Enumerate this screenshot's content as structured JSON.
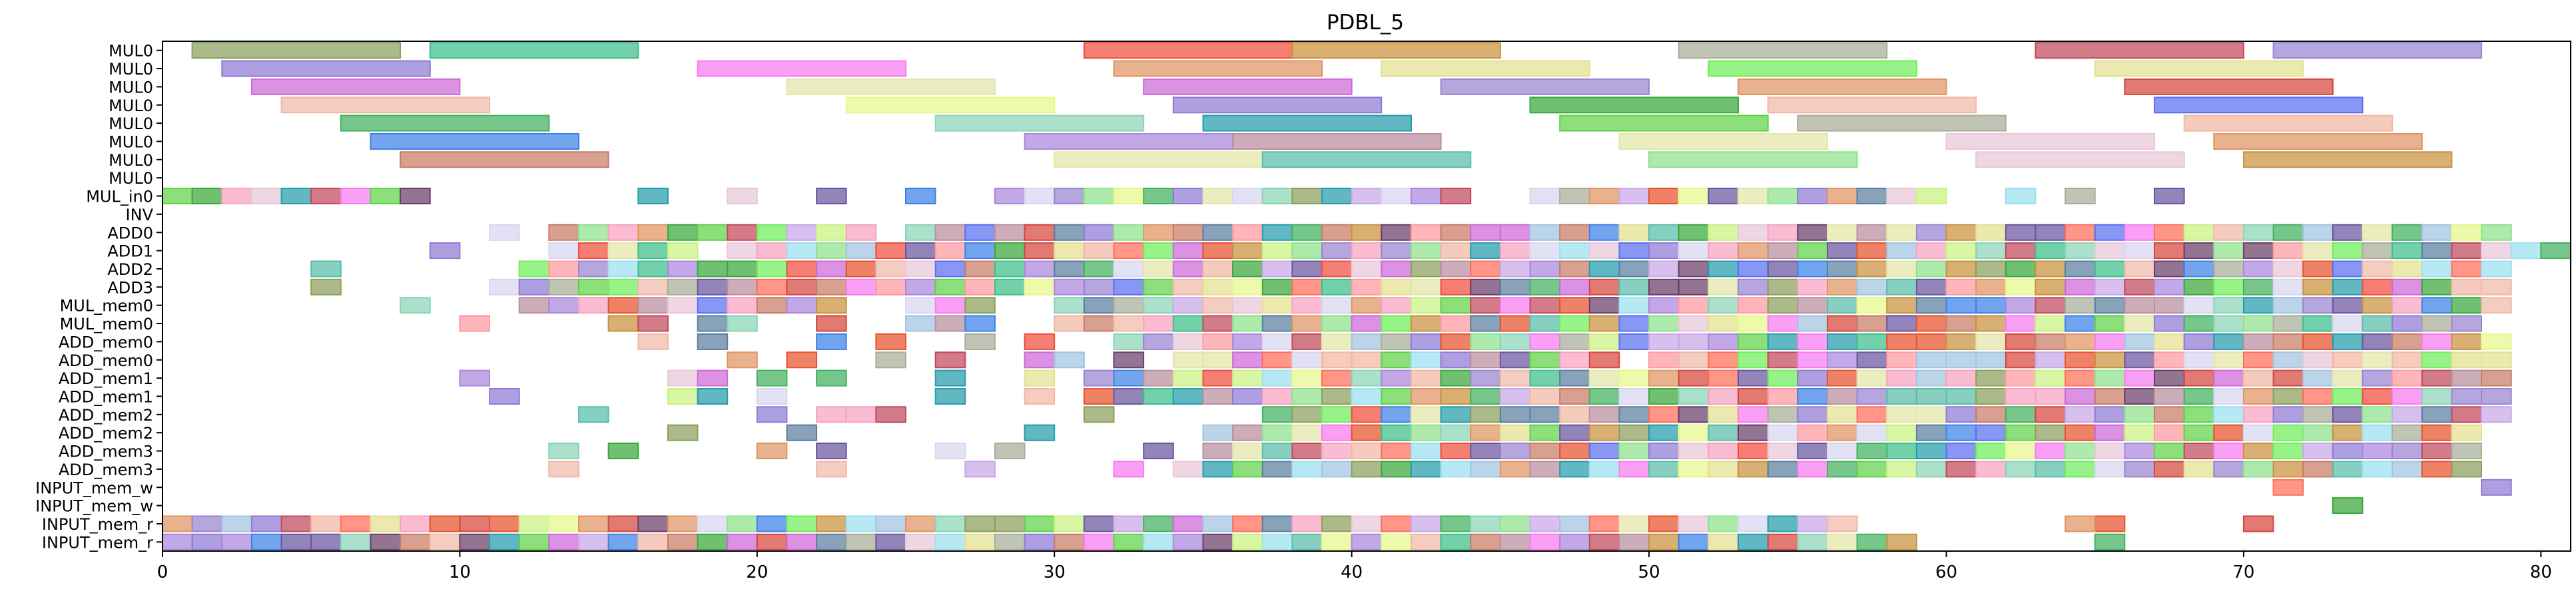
{
  "chart_data": {
    "type": "gantt",
    "title": "PDBL_5",
    "xlabel": "",
    "ylabel": "",
    "xlim": [
      0,
      81
    ],
    "x_ticks": [
      0,
      10,
      20,
      30,
      40,
      50,
      60,
      70,
      80
    ],
    "grid": false,
    "legend": "none",
    "rows": [
      "MUL0",
      "MUL0",
      "MUL0",
      "MUL0",
      "MUL0",
      "MUL0",
      "MUL0",
      "MUL0",
      "MUL_in0",
      "INV",
      "ADD0",
      "ADD1",
      "ADD2",
      "ADD3",
      "MUL_mem0",
      "MUL_mem0",
      "ADD_mem0",
      "ADD_mem0",
      "ADD_mem1",
      "ADD_mem1",
      "ADD_mem2",
      "ADD_mem2",
      "ADD_mem3",
      "ADD_mem3",
      "INPUT_mem_w",
      "INPUT_mem_w",
      "INPUT_mem_r",
      "INPUT_mem_r"
    ],
    "palette": [
      "#8aa05a",
      "#3cbf8a",
      "#f04e3c",
      "#c9913f",
      "#a8ad98",
      "#c04a5c",
      "#9a84d1",
      "#8f7ad6",
      "#f77cf0",
      "#c9f27f",
      "#e09462",
      "#e3e08f",
      "#e8f88a",
      "#6fee5a",
      "#e8522c",
      "#cd68d8",
      "#d4463c",
      "#f0b8a8",
      "#3aa83c",
      "#5a6ef0",
      "#43b15f",
      "#f0b7a2",
      "#aa86dc",
      "#e3e6a8",
      "#8ad4b5",
      "#249dab",
      "#5fd248",
      "#e8c7d8",
      "#bb8e9f",
      "#3b82e8",
      "#c77c66",
      "#59bda8",
      "#f7a2c0",
      "#6a55a0",
      "#8ee28a",
      "#6a3e6a",
      "#ff9aa0",
      "#5a7ea0",
      "#d8d6f0",
      "#a2c4e0",
      "#ff6e5a",
      "#9be0f0",
      "#c9a7e8"
    ],
    "tasks": [
      {
        "row": 0,
        "start": 1,
        "end": 8,
        "c": 0
      },
      {
        "row": 0,
        "start": 9,
        "end": 16,
        "c": 1
      },
      {
        "row": 0,
        "start": 31,
        "end": 38,
        "c": 2
      },
      {
        "row": 0,
        "start": 38,
        "end": 45,
        "c": 3
      },
      {
        "row": 0,
        "start": 51,
        "end": 58,
        "c": 4
      },
      {
        "row": 0,
        "start": 63,
        "end": 70,
        "c": 5
      },
      {
        "row": 0,
        "start": 71,
        "end": 78,
        "c": 6
      },
      {
        "row": 1,
        "start": 2,
        "end": 9,
        "c": 7
      },
      {
        "row": 1,
        "start": 18,
        "end": 25,
        "c": 8
      },
      {
        "row": 1,
        "start": 32,
        "end": 39,
        "c": 10
      },
      {
        "row": 1,
        "start": 41,
        "end": 48,
        "c": 11
      },
      {
        "row": 1,
        "start": 52,
        "end": 59,
        "c": 13
      },
      {
        "row": 1,
        "start": 65,
        "end": 72,
        "c": 11
      },
      {
        "row": 2,
        "start": 3,
        "end": 10,
        "c": 15
      },
      {
        "row": 2,
        "start": 21,
        "end": 28,
        "c": 23
      },
      {
        "row": 2,
        "start": 33,
        "end": 40,
        "c": 15
      },
      {
        "row": 2,
        "start": 43,
        "end": 50,
        "c": 6
      },
      {
        "row": 2,
        "start": 53,
        "end": 60,
        "c": 10
      },
      {
        "row": 2,
        "start": 66,
        "end": 73,
        "c": 16
      },
      {
        "row": 3,
        "start": 4,
        "end": 11,
        "c": 17
      },
      {
        "row": 3,
        "start": 23,
        "end": 30,
        "c": 12
      },
      {
        "row": 3,
        "start": 34,
        "end": 41,
        "c": 7
      },
      {
        "row": 3,
        "start": 46,
        "end": 53,
        "c": 18
      },
      {
        "row": 3,
        "start": 54,
        "end": 61,
        "c": 17
      },
      {
        "row": 3,
        "start": 67,
        "end": 74,
        "c": 19
      },
      {
        "row": 4,
        "start": 6,
        "end": 13,
        "c": 20
      },
      {
        "row": 4,
        "start": 26,
        "end": 33,
        "c": 24
      },
      {
        "row": 4,
        "start": 35,
        "end": 42,
        "c": 25
      },
      {
        "row": 4,
        "start": 47,
        "end": 54,
        "c": 26
      },
      {
        "row": 4,
        "start": 55,
        "end": 62,
        "c": 4
      },
      {
        "row": 4,
        "start": 68,
        "end": 75,
        "c": 21
      },
      {
        "row": 5,
        "start": 7,
        "end": 14,
        "c": 29
      },
      {
        "row": 5,
        "start": 29,
        "end": 36,
        "c": 22
      },
      {
        "row": 5,
        "start": 36,
        "end": 43,
        "c": 28
      },
      {
        "row": 5,
        "start": 49,
        "end": 56,
        "c": 23
      },
      {
        "row": 5,
        "start": 60,
        "end": 67,
        "c": 27
      },
      {
        "row": 5,
        "start": 69,
        "end": 76,
        "c": 10
      },
      {
        "row": 6,
        "start": 8,
        "end": 15,
        "c": 30
      },
      {
        "row": 6,
        "start": 30,
        "end": 37,
        "c": 23
      },
      {
        "row": 6,
        "start": 37,
        "end": 44,
        "c": 31
      },
      {
        "row": 6,
        "start": 50,
        "end": 57,
        "c": 34
      },
      {
        "row": 6,
        "start": 61,
        "end": 68,
        "c": 27
      },
      {
        "row": 6,
        "start": 70,
        "end": 77,
        "c": 3
      }
    ],
    "dense_rows": {
      "8": {
        "from": 0,
        "to": 78,
        "skip": [
          9,
          10,
          11,
          12,
          13,
          14,
          15,
          17,
          18,
          20,
          21,
          23,
          24,
          26,
          27,
          44,
          45,
          60,
          61,
          63,
          65,
          66,
          68,
          69,
          70,
          71,
          72,
          73,
          74,
          75,
          76,
          77
        ],
        "seed": 3
      },
      "10": {
        "from": 11,
        "to": 79,
        "skip": [
          12,
          24
        ],
        "seed": 5
      },
      "11": {
        "from": 9,
        "to": 81,
        "skip": [
          10,
          11,
          12,
          18
        ],
        "seed": 7
      },
      "12": {
        "from": 5,
        "to": 79,
        "skip": [
          6,
          7,
          8,
          9,
          10,
          11
        ],
        "seed": 11
      },
      "13": {
        "from": 5,
        "to": 79,
        "skip": [
          6,
          7,
          8,
          9,
          10
        ],
        "seed": 13
      },
      "14": {
        "from": 8,
        "to": 79,
        "skip": [
          9,
          10,
          11,
          23,
          24,
          28,
          29
        ],
        "seed": 17
      },
      "15": {
        "from": 10,
        "to": 78,
        "skip": [
          11,
          12,
          13,
          14,
          17,
          20,
          21,
          23,
          24,
          28,
          29
        ],
        "seed": 19
      },
      "16": {
        "from": 16,
        "to": 79,
        "skip": [
          17,
          19,
          20,
          21,
          23,
          25,
          26,
          28,
          30,
          31
        ],
        "seed": 23
      },
      "17": {
        "from": 19,
        "to": 79,
        "skip": [
          20,
          22,
          23,
          25,
          27,
          28,
          31,
          33,
          49
        ],
        "seed": 29
      },
      "18": {
        "from": 10,
        "to": 79,
        "skip": [
          11,
          12,
          13,
          14,
          15,
          16,
          19,
          21,
          23,
          24,
          25,
          27,
          28,
          30
        ],
        "seed": 31
      },
      "19": {
        "from": 11,
        "to": 79,
        "skip": [
          12,
          13,
          14,
          15,
          16,
          19,
          21,
          22,
          23,
          24,
          25,
          27,
          28,
          30
        ],
        "seed": 37
      },
      "20": {
        "from": 14,
        "to": 79,
        "skip": [
          15,
          16,
          17,
          18,
          19,
          21,
          25,
          26,
          27,
          28,
          29,
          30,
          32,
          33,
          34,
          35,
          36
        ],
        "seed": 41
      },
      "21": {
        "from": 17,
        "to": 78,
        "skip": [
          18,
          19,
          20,
          22,
          23,
          24,
          25,
          26,
          27,
          28,
          30,
          31,
          32,
          33,
          34
        ],
        "seed": 43
      },
      "22": {
        "from": 13,
        "to": 78,
        "skip": [
          14,
          16,
          17,
          18,
          19,
          21,
          23,
          24,
          25,
          27,
          29,
          30,
          31,
          32,
          34
        ],
        "seed": 47
      },
      "23": {
        "from": 13,
        "to": 78,
        "skip": [
          14,
          15,
          16,
          17,
          18,
          19,
          20,
          21,
          23,
          24,
          25,
          26,
          28,
          29,
          30,
          31,
          33
        ],
        "seed": 53
      },
      "26": {
        "from": 0,
        "to": 66,
        "skip": [
          57,
          58,
          59,
          60,
          61,
          62,
          63,
          64
        ],
        "seed": 59
      },
      "27": {
        "from": 0,
        "to": 59,
        "skip": [],
        "seed": 61
      }
    },
    "extra_tasks": [
      {
        "row": 24,
        "start": 71,
        "end": 72,
        "c": 40
      },
      {
        "row": 24,
        "start": 78,
        "end": 79,
        "c": 7
      },
      {
        "row": 25,
        "start": 73,
        "end": 74,
        "c": 18
      },
      {
        "row": 26,
        "start": 64,
        "end": 65,
        "c": 10
      },
      {
        "row": 26,
        "start": 70,
        "end": 71,
        "c": 16
      },
      {
        "row": 27,
        "start": 65,
        "end": 66,
        "c": 20
      }
    ]
  }
}
